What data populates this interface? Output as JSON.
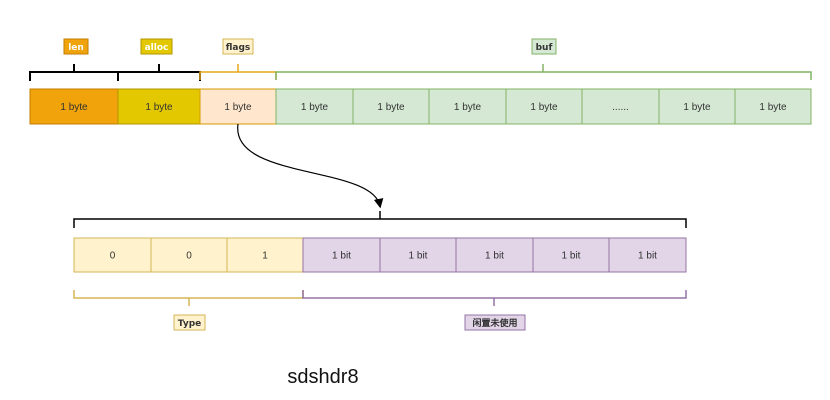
{
  "labels": {
    "len": "len",
    "alloc": "alloc",
    "flags": "flags",
    "buf": "buf",
    "type": "Type",
    "unused": "闲置未使用",
    "caption": "sdshdr8"
  },
  "top_cells": [
    "1 byte",
    "1 byte",
    "1 byte",
    "1 byte",
    "1 byte",
    "1 byte",
    "1 byte",
    "......",
    "1 byte",
    "1 byte"
  ],
  "flag_bits": [
    "0",
    "0",
    "1",
    "1 bit",
    "1 bit",
    "1 bit",
    "1 bit",
    "1 bit"
  ],
  "colors": {
    "len": "#f0a30a",
    "alloc": "#e3c800",
    "flags": "#ffe6cc",
    "buf": "#d5e8d4",
    "type": "#fff2cc",
    "unused": "#e1d5e7"
  }
}
